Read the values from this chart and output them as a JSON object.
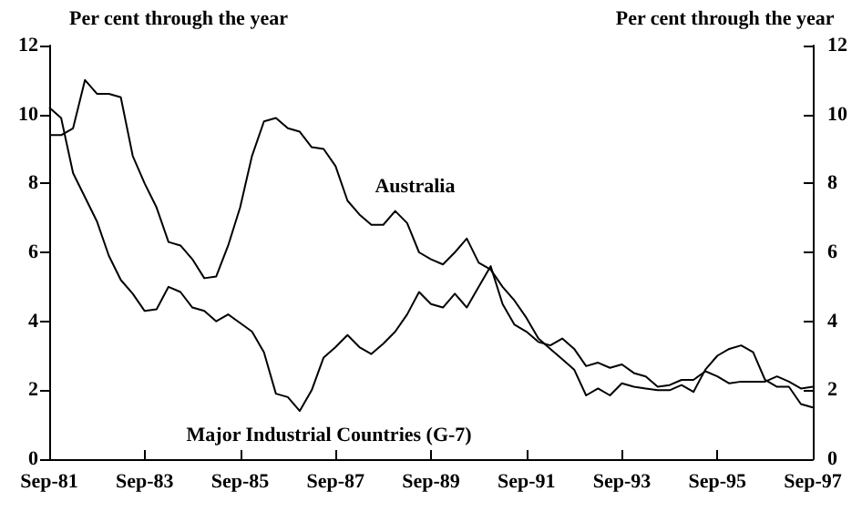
{
  "chart_data": {
    "type": "line",
    "ylabel": "Per cent through the year",
    "y2label": "Per cent through the year",
    "categories": [
      "Sep-81",
      null,
      null,
      null,
      null,
      null,
      null,
      null,
      "Sep-83",
      null,
      null,
      null,
      null,
      null,
      null,
      null,
      "Sep-85",
      null,
      null,
      null,
      null,
      null,
      null,
      null,
      "Sep-87",
      null,
      null,
      null,
      null,
      null,
      null,
      null,
      "Sep-89",
      null,
      null,
      null,
      null,
      null,
      null,
      null,
      "Sep-91",
      null,
      null,
      null,
      null,
      null,
      null,
      null,
      "Sep-93",
      null,
      null,
      null,
      null,
      null,
      null,
      null,
      "Sep-95",
      null,
      null,
      null,
      null,
      null,
      null,
      null,
      "Sep-97"
    ],
    "series": [
      {
        "name": "Australia",
        "color": "#000000",
        "values": [
          9.4,
          9.4,
          9.6,
          11.0,
          10.6,
          10.6,
          10.5,
          8.8,
          8.0,
          7.3,
          6.3,
          6.2,
          5.8,
          5.25,
          5.3,
          6.2,
          7.3,
          8.8,
          9.8,
          9.9,
          9.6,
          9.5,
          9.05,
          9.0,
          8.5,
          7.5,
          7.1,
          6.8,
          6.8,
          7.2,
          6.85,
          6.0,
          5.8,
          5.65,
          6.0,
          6.4,
          5.7,
          5.5,
          5.0,
          4.6,
          4.1,
          3.5,
          3.2,
          2.9,
          2.6,
          1.85,
          2.05,
          1.85,
          2.2,
          2.1,
          2.05,
          2.0,
          2.0,
          2.15,
          1.95,
          2.6,
          3.0,
          3.2,
          3.3,
          3.1,
          2.3,
          2.1,
          2.1,
          1.6,
          1.5
        ]
      },
      {
        "name": "Major Industrial Countries (G-7)",
        "color": "#000000",
        "values": [
          10.2,
          9.9,
          8.3,
          7.6,
          6.9,
          5.9,
          5.2,
          4.8,
          4.3,
          4.35,
          5.0,
          4.85,
          4.4,
          4.3,
          4.0,
          4.2,
          3.95,
          3.7,
          3.1,
          1.9,
          1.8,
          1.4,
          2.0,
          2.95,
          3.25,
          3.6,
          3.25,
          3.05,
          3.35,
          3.7,
          4.2,
          4.85,
          4.5,
          4.4,
          4.8,
          4.4,
          5.0,
          5.6,
          4.5,
          3.9,
          3.7,
          3.4,
          3.3,
          3.5,
          3.2,
          2.7,
          2.8,
          2.65,
          2.75,
          2.5,
          2.4,
          2.1,
          2.15,
          2.3,
          2.3,
          2.55,
          2.4,
          2.2,
          2.25,
          2.25,
          2.25,
          2.4,
          2.25,
          2.05,
          2.1
        ]
      }
    ],
    "ylim": [
      0,
      12
    ],
    "yticks": [
      0,
      2,
      4,
      6,
      8,
      10,
      12
    ],
    "y2lim": [
      0,
      12
    ],
    "y2ticks": [
      0,
      2,
      4,
      6,
      8,
      10,
      12
    ],
    "grid": false,
    "legend": false,
    "marker": "none",
    "line_style": "solid"
  }
}
